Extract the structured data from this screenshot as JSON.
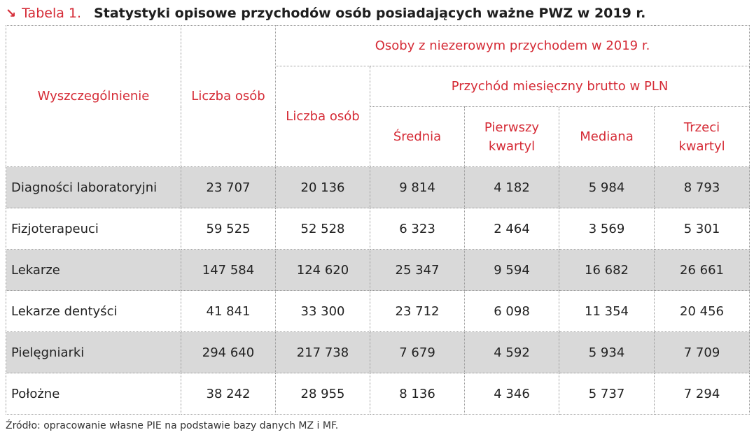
{
  "title": {
    "arrow": "↘",
    "label": "Tabela 1.",
    "text": "Statystyki opisowe przychodów osób posiadających ważne PWZ w 2019 r."
  },
  "table": {
    "headers": {
      "category": "Wyszczególnienie",
      "count_all": "Liczba osób",
      "nonzero_group": "Osoby z niezerowym przychodem w 2019 r.",
      "count_nonzero": "Liczba osób",
      "income_group": "Przychód miesięczny brutto w PLN",
      "mean": "Średnia",
      "q1_line1": "Pierwszy",
      "q1_line2": "kwartyl",
      "median": "Mediana",
      "q3_line1": "Trzeci",
      "q3_line2": "kwartyl"
    },
    "rows": [
      {
        "name": "Diagności laboratoryjni",
        "count_all": "23 707",
        "count_nonzero": "20 136",
        "mean": "9 814",
        "q1": "4 182",
        "median": "5 984",
        "q3": "8 793"
      },
      {
        "name": "Fizjoterapeuci",
        "count_all": "59 525",
        "count_nonzero": "52 528",
        "mean": "6 323",
        "q1": "2 464",
        "median": "3 569",
        "q3": "5 301"
      },
      {
        "name": "Lekarze",
        "count_all": "147 584",
        "count_nonzero": "124 620",
        "mean": "25 347",
        "q1": "9 594",
        "median": "16 682",
        "q3": "26 661"
      },
      {
        "name": "Lekarze dentyści",
        "count_all": "41 841",
        "count_nonzero": "33 300",
        "mean": "23 712",
        "q1": "6 098",
        "median": "11 354",
        "q3": "20 456"
      },
      {
        "name": "Pielęgniarki",
        "count_all": "294 640",
        "count_nonzero": "217 738",
        "mean": "7 679",
        "q1": "4 592",
        "median": "5 934",
        "q3": "7 709"
      },
      {
        "name": "Położne",
        "count_all": "38 242",
        "count_nonzero": "28 955",
        "mean": "8 136",
        "q1": "4 346",
        "median": "5 737",
        "q3": "7 294"
      }
    ]
  },
  "source": "Źródło: opracowanie własne PIE na podstawie bazy danych MZ i MF.",
  "colors": {
    "accent": "#d52b36",
    "row_shade": "#d9d9d9",
    "border": "#9a9a9a"
  }
}
